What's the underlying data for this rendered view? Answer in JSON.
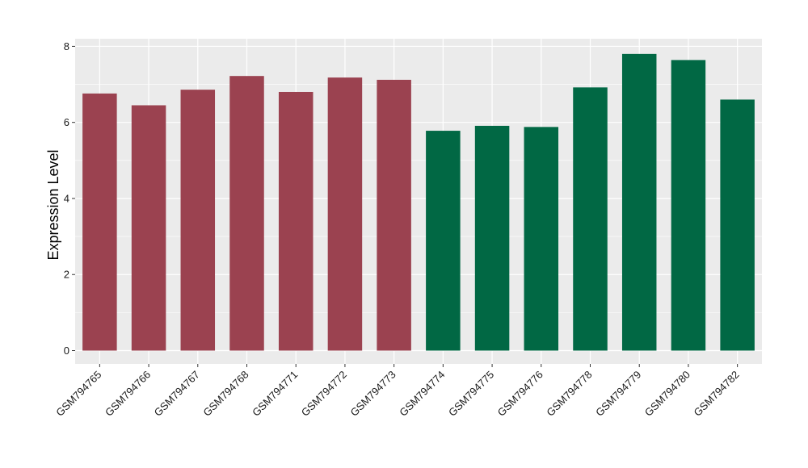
{
  "chart_data": {
    "type": "bar",
    "title": "",
    "xlabel": "",
    "ylabel": "Expression Level",
    "ylim": [
      -0.35,
      8.2
    ],
    "yticks": [
      0,
      2,
      4,
      6,
      8
    ],
    "grid": true,
    "legend": "none",
    "categories": [
      "GSM794765",
      "GSM794766",
      "GSM794767",
      "GSM794768",
      "GSM794771",
      "GSM794772",
      "GSM794773",
      "GSM794774",
      "GSM794775",
      "GSM794776",
      "GSM794778",
      "GSM794779",
      "GSM794780",
      "GSM794782"
    ],
    "values": [
      6.76,
      6.45,
      6.86,
      7.22,
      6.8,
      7.18,
      7.12,
      5.78,
      5.91,
      5.88,
      6.92,
      7.8,
      7.64,
      6.6
    ],
    "groups": [
      0,
      0,
      0,
      0,
      0,
      0,
      0,
      1,
      1,
      1,
      1,
      1,
      1,
      1
    ],
    "colors": [
      "#9b4250",
      "#016844"
    ],
    "background": "#ebebeb",
    "gridline_color": "#ffffff"
  }
}
